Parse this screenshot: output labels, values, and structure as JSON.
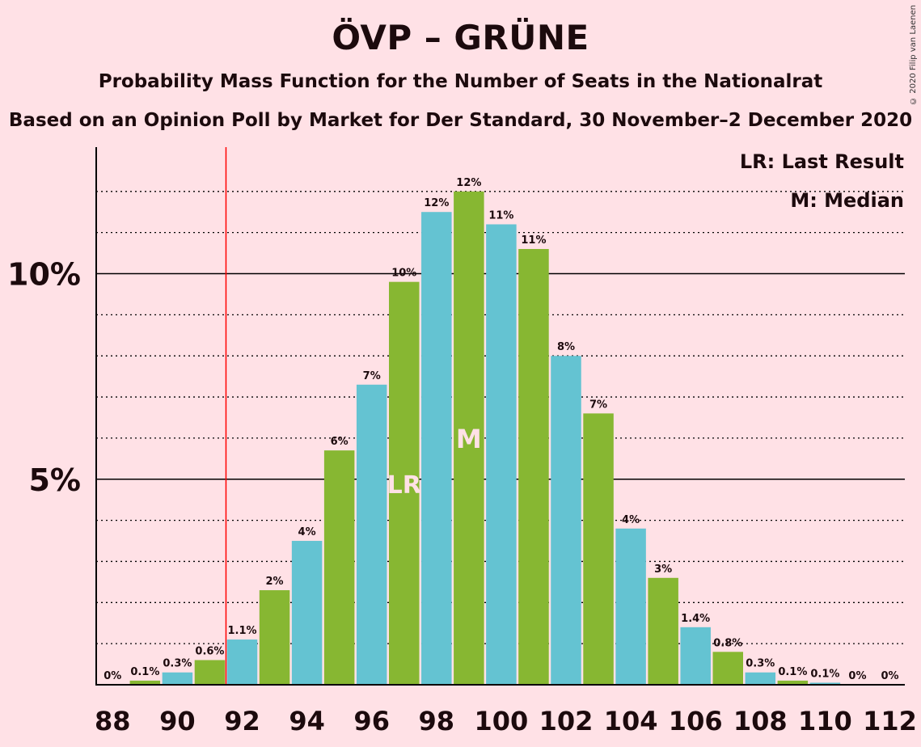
{
  "title": "ÖVP – GRÜNE",
  "subtitle": "Probability Mass Function for the Number of Seats in the Nationalrat",
  "subtitle2": "Based on an Opinion Poll by Market for Der Standard, 30 November–2 December 2020",
  "copyright": "© 2020 Filip van Laenen",
  "legend": {
    "lr": "LR: Last Result",
    "m": "M: Median"
  },
  "colors": {
    "background": "#ffe1e6",
    "blue": "#64c3d2",
    "green": "#87b732",
    "last_result_line": "#ff0000",
    "text": "#1c0a0d"
  },
  "chart_data": {
    "type": "bar",
    "x": [
      88,
      89,
      90,
      91,
      92,
      93,
      94,
      95,
      96,
      97,
      98,
      99,
      100,
      101,
      102,
      103,
      104,
      105,
      106,
      107,
      108,
      109,
      110,
      111,
      112
    ],
    "values": [
      0,
      0.1,
      0.3,
      0.6,
      1.1,
      2.3,
      3.5,
      5.7,
      7.3,
      9.8,
      11.5,
      12.0,
      11.2,
      10.6,
      8.0,
      6.6,
      3.8,
      2.6,
      1.4,
      0.8,
      0.3,
      0.1,
      0.05,
      0,
      0
    ],
    "labels": [
      "0%",
      "0.1%",
      "0.3%",
      "0.6%",
      "1.1%",
      "2%",
      "4%",
      "6%",
      "7%",
      "10%",
      "12%",
      "12%",
      "11%",
      "11%",
      "8%",
      "7%",
      "4%",
      "3%",
      "1.4%",
      "0.8%",
      "0.3%",
      "0.1%",
      "0.1%",
      "0%",
      "0%"
    ],
    "x_tick_labels": [
      "88",
      "90",
      "92",
      "94",
      "96",
      "98",
      "100",
      "102",
      "104",
      "106",
      "108",
      "110",
      "112"
    ],
    "y_tick_labels": [
      {
        "value": 5,
        "label": "5%"
      },
      {
        "value": 10,
        "label": "10%"
      }
    ],
    "ylim": [
      0,
      13
    ],
    "unit": "%",
    "last_result": {
      "seats": 97,
      "marker": "LR",
      "line_after_seat": 91.5
    },
    "median": {
      "seats": 99,
      "marker": "M"
    },
    "grid": "dotted every 1%, solid at 5% and 10%"
  }
}
